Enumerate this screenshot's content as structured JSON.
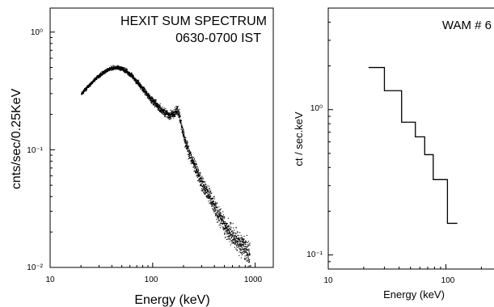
{
  "chart_data": [
    {
      "type": "scatter",
      "title": "HEXIT SUM SPECTRUM",
      "subtitle": "0630-0700 IST",
      "xlabel": "Energy (keV)",
      "ylabel": "cnts/sec/0.25KeV",
      "x_scale": "log",
      "y_scale": "log",
      "xlim": [
        10,
        1500
      ],
      "ylim": [
        0.01,
        1.6
      ],
      "x_ticks": [
        10,
        100,
        1000
      ],
      "x_tick_labels": [
        "10",
        "100",
        "1000"
      ],
      "y_ticks": [
        0.01,
        0.1,
        1
      ],
      "y_tick_labels": [
        "10⁻²",
        "10⁻¹",
        "10⁰"
      ],
      "grid": false,
      "legend": "none",
      "series": [
        {
          "x": [
            20,
            22,
            25,
            28,
            32,
            36,
            40,
            45,
            50,
            55,
            60,
            70,
            80,
            90,
            100,
            120,
            140,
            160,
            170,
            180,
            190,
            200,
            220,
            250,
            280,
            320,
            360,
            400,
            450,
            500,
            560,
            620,
            700,
            800,
            880
          ],
          "y": [
            0.3,
            0.33,
            0.37,
            0.41,
            0.45,
            0.48,
            0.5,
            0.5,
            0.49,
            0.47,
            0.44,
            0.38,
            0.33,
            0.29,
            0.26,
            0.22,
            0.2,
            0.2,
            0.22,
            0.2,
            0.16,
            0.13,
            0.1,
            0.075,
            0.06,
            0.047,
            0.04,
            0.033,
            0.027,
            0.023,
            0.02,
            0.018,
            0.016,
            0.014,
            0.013
          ]
        }
      ]
    },
    {
      "type": "line",
      "step": true,
      "title": "WAM # 6",
      "xlabel": "Energy (keV)",
      "ylabel": "ct / sec.keV",
      "x_scale": "log",
      "y_scale": "log",
      "xlim": [
        10,
        300
      ],
      "ylim": [
        0.08,
        5
      ],
      "x_ticks": [
        10,
        100
      ],
      "x_tick_labels": [
        "10",
        "100"
      ],
      "y_ticks": [
        0.1,
        1
      ],
      "y_tick_labels": [
        "10⁻¹",
        "10⁰"
      ],
      "grid": false,
      "legend": "none",
      "series": [
        {
          "bin_edges": [
            22,
            30,
            42,
            55,
            66,
            78,
            103,
            125
          ],
          "values": [
            1.95,
            1.35,
            0.82,
            0.65,
            0.49,
            0.33,
            0.165
          ]
        }
      ]
    }
  ]
}
